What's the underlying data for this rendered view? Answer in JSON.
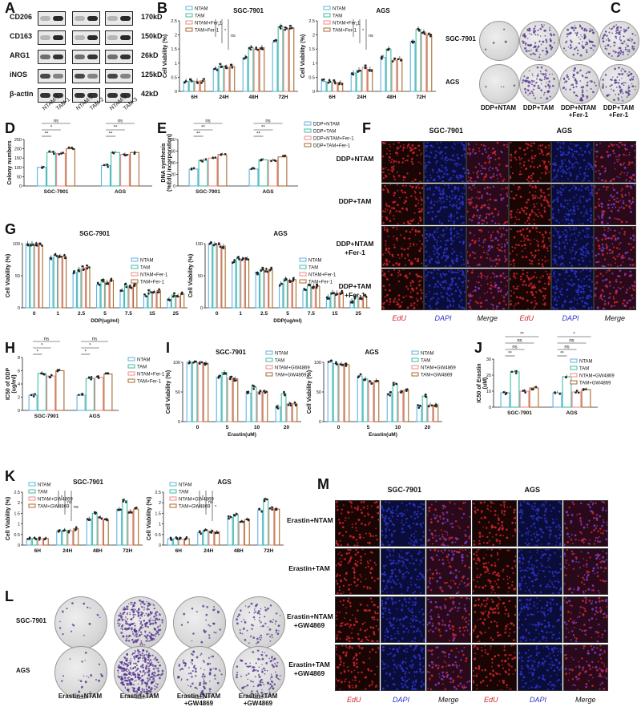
{
  "panels": {
    "A": {
      "letter": "A",
      "proteins": [
        "CD206",
        "CD163",
        "ARG1",
        "iNOS",
        "β-actin"
      ],
      "sizes": [
        "170kD",
        "150kD",
        "26kD",
        "125kD",
        "42kD"
      ],
      "lanes": [
        "NTAM-1",
        "TAM-1",
        "NTAM-2",
        "TAM-2",
        "NTAM-3",
        "TAM-3"
      ]
    },
    "B": {
      "letter": "B"
    },
    "C": {
      "letter": "C",
      "rows": [
        "SGC-7901",
        "AGS"
      ],
      "cols": [
        "DDP+NTAM",
        "DDP+TAM",
        "DDP+NTAM\n+Fer-1",
        "DDP+TAM\n+Fer-1"
      ]
    },
    "D": {
      "letter": "D"
    },
    "E": {
      "letter": "E"
    },
    "F": {
      "letter": "F",
      "col_heads": [
        "SGC-7901",
        "AGS"
      ],
      "rows": [
        "DDP+NTAM",
        "DDP+TAM",
        "DDP+NTAM\n+Fer-1",
        "DDP+TAM\n+Fer-1"
      ],
      "cols": [
        "EdU",
        "DAPI",
        "Merge",
        "EdU",
        "DAPI",
        "Merge"
      ]
    },
    "G": {
      "letter": "G"
    },
    "H": {
      "letter": "H"
    },
    "I": {
      "letter": "I"
    },
    "J": {
      "letter": "J"
    },
    "K": {
      "letter": "K"
    },
    "L": {
      "letter": "L",
      "rows": [
        "SGC-7901",
        "AGS"
      ],
      "cols": [
        "Erastin+NTAM",
        "Erastin+TAM",
        "Erastin+NTAM\n+GW4869",
        "Erastin+TAM\n+GW4869"
      ]
    },
    "M": {
      "letter": "M",
      "col_heads": [
        "SGC-7901",
        "AGS"
      ],
      "rows": [
        "Erastin+NTAM",
        "Erastin+TAM",
        "Erastin+NTAM\n+GW4869",
        "Erastin+TAM\n+GW4869"
      ],
      "cols": [
        "EdU",
        "DAPI",
        "Merge",
        "EdU",
        "DAPI",
        "Merge"
      ]
    }
  },
  "colors": {
    "c1": "#5fb3df",
    "c2": "#3dbfa0",
    "c3": "#f08a8a",
    "c4": "#a86b2f",
    "edu": "#d2262c",
    "dapi": "#2b34c9"
  },
  "chart_data": [
    {
      "id": "B1",
      "type": "bar",
      "title": "SGC-7901",
      "ylabel": "Cell Viability (%)",
      "categories": [
        "6H",
        "24H",
        "48H",
        "72H"
      ],
      "ylim": [
        0,
        2.5
      ],
      "yticks": [
        0,
        0.5,
        1.0,
        1.5,
        2.0,
        2.5
      ],
      "legend": [
        "NTAM",
        "TAM",
        "NTAM+Fer-1",
        "TAM+Fer-1"
      ],
      "series": [
        {
          "name": "NTAM",
          "values": [
            0.35,
            0.8,
            1.2,
            1.75
          ]
        },
        {
          "name": "TAM",
          "values": [
            0.37,
            0.9,
            1.55,
            2.3
          ]
        },
        {
          "name": "NTAM+Fer-1",
          "values": [
            0.36,
            0.85,
            1.5,
            2.2
          ]
        },
        {
          "name": "TAM+Fer-1",
          "values": [
            0.37,
            0.88,
            1.55,
            2.25
          ]
        }
      ],
      "sig": [
        "*",
        "*",
        "ns"
      ]
    },
    {
      "id": "B2",
      "type": "bar",
      "title": "AGS",
      "ylabel": "Cell Viability (%)",
      "categories": [
        "6H",
        "24H",
        "48H",
        "72H"
      ],
      "ylim": [
        0,
        2.5
      ],
      "yticks": [
        0,
        0.5,
        1.0,
        1.5,
        2.0,
        2.5
      ],
      "legend": [
        "NTAM",
        "TAM",
        "NTAM+Fer-1",
        "TAM+Fer-1"
      ],
      "series": [
        {
          "name": "NTAM",
          "values": [
            0.35,
            0.65,
            1.2,
            1.75
          ]
        },
        {
          "name": "TAM",
          "values": [
            0.33,
            0.75,
            1.5,
            2.2
          ]
        },
        {
          "name": "NTAM+Fer-1",
          "values": [
            0.32,
            0.85,
            1.1,
            2.1
          ]
        },
        {
          "name": "TAM+Fer-1",
          "values": [
            0.3,
            0.78,
            1.15,
            2.0
          ]
        }
      ],
      "sig": [
        "*",
        "*",
        "ns"
      ]
    },
    {
      "id": "D",
      "type": "bar",
      "title": "",
      "ylabel": "Colony numbers",
      "categories": [
        "SGC-7901",
        "AGS"
      ],
      "ylim": [
        0,
        250
      ],
      "yticks": [
        0,
        50,
        100,
        150,
        200,
        250
      ],
      "legend": [],
      "series": [
        {
          "name": "NTAM",
          "values": [
            100,
            110
          ]
        },
        {
          "name": "TAM",
          "values": [
            180,
            180
          ]
        },
        {
          "name": "NTAM+Fer-1",
          "values": [
            175,
            170
          ]
        },
        {
          "name": "TAM+Fer-1",
          "values": [
            200,
            180
          ]
        }
      ],
      "sig": [
        "**",
        "*",
        "ns",
        "**",
        "**",
        "ns"
      ]
    },
    {
      "id": "E",
      "type": "bar",
      "title": "",
      "ylabel": "DNA synthesis\n(%EdU incorporation)",
      "categories": [
        "SGC-7901",
        "AGS"
      ],
      "ylim": [
        0,
        80
      ],
      "yticks": [
        0,
        20,
        40,
        60,
        80
      ],
      "legend": [
        "DDP+NTAM",
        "DDP+TAM",
        "DDP+NTAM+Fer-1",
        "DDP+TAM+Fer-1"
      ],
      "series": [
        {
          "name": "DDP+NTAM",
          "values": [
            29,
            29
          ]
        },
        {
          "name": "DDP+TAM",
          "values": [
            44,
            45
          ]
        },
        {
          "name": "DDP+NTAM+Fer-1",
          "values": [
            48,
            44
          ]
        },
        {
          "name": "DDP+TAM+Fer-1",
          "values": [
            54,
            50
          ]
        }
      ],
      "sig": [
        "**",
        "**",
        "ns",
        "**",
        "**",
        "ns"
      ]
    },
    {
      "id": "G1",
      "type": "bar",
      "title": "SGC-7901",
      "ylabel": "Cell Viability (%)",
      "xlabel": "DDP(ug/ml)",
      "categories": [
        "0",
        "1",
        "2.5",
        "5",
        "7.5",
        "15",
        "25"
      ],
      "ylim": [
        0,
        100
      ],
      "yticks": [
        0,
        50,
        100
      ],
      "legend": [
        "NTAM",
        "TAM",
        "NTAM+Fer-1",
        "TAM+Fer-1"
      ],
      "series": [
        {
          "name": "NTAM",
          "values": [
            100,
            78,
            55,
            36,
            27,
            18,
            13
          ]
        },
        {
          "name": "TAM",
          "values": [
            100,
            82,
            60,
            42,
            35,
            25,
            20
          ]
        },
        {
          "name": "NTAM+Fer-1",
          "values": [
            99,
            80,
            62,
            40,
            33,
            24,
            18
          ]
        },
        {
          "name": "TAM+Fer-1",
          "values": [
            98,
            80,
            63,
            43,
            37,
            27,
            22
          ]
        }
      ]
    },
    {
      "id": "G2",
      "type": "bar",
      "title": "AGS",
      "ylabel": "Cell Viability (%)",
      "xlabel": "DDP(ug/ml)",
      "categories": [
        "0",
        "1",
        "2.5",
        "5",
        "7.5",
        "15",
        "25"
      ],
      "ylim": [
        0,
        100
      ],
      "yticks": [
        0,
        50,
        100
      ],
      "legend": [
        "NTAM",
        "TAM",
        "NTAM+Fer-1",
        "TAM+Fer-1"
      ],
      "series": [
        {
          "name": "NTAM",
          "values": [
            100,
            72,
            53,
            37,
            27,
            17,
            11
          ]
        },
        {
          "name": "TAM",
          "values": [
            99,
            77,
            60,
            45,
            34,
            24,
            17
          ]
        },
        {
          "name": "NTAM+Fer-1",
          "values": [
            98,
            76,
            58,
            42,
            33,
            23,
            16
          ]
        },
        {
          "name": "TAM+Fer-1",
          "values": [
            96,
            76,
            60,
            44,
            34,
            24,
            18
          ]
        }
      ]
    },
    {
      "id": "H",
      "type": "bar",
      "title": "",
      "ylabel": "IC50 of DDP\n(ug/ml)",
      "categories": [
        "SGC-7901",
        "AGS"
      ],
      "ylim": [
        0,
        8
      ],
      "yticks": [
        0,
        2,
        4,
        6,
        8
      ],
      "legend": [
        "NTAM",
        "TAM",
        "NTAM+Fer-1",
        "TAM+Fer-1"
      ],
      "series": [
        {
          "name": "NTAM",
          "values": [
            2.3,
            2.3
          ]
        },
        {
          "name": "TAM",
          "values": [
            5.6,
            4.8
          ]
        },
        {
          "name": "NTAM+Fer-1",
          "values": [
            5.2,
            5.0
          ]
        },
        {
          "name": "TAM+Fer-1",
          "values": [
            6.0,
            5.5
          ]
        }
      ],
      "sig": [
        "*",
        "*",
        "ns",
        "*",
        "*",
        "ns"
      ]
    },
    {
      "id": "I1",
      "type": "bar",
      "title": "SGC-7901",
      "ylabel": "Cell Viability (%)",
      "xlabel": "Erastin(uM)",
      "categories": [
        "0",
        "5",
        "10",
        "20"
      ],
      "ylim": [
        0,
        100
      ],
      "yticks": [
        0,
        50,
        100
      ],
      "legend": [
        "NTAM",
        "TAM",
        "NTAM+GW4869",
        "TAM+GW4869"
      ],
      "series": [
        {
          "name": "NTAM",
          "values": [
            100,
            75,
            48,
            25
          ]
        },
        {
          "name": "TAM",
          "values": [
            100,
            83,
            58,
            47
          ]
        },
        {
          "name": "NTAM+GW4869",
          "values": [
            99,
            73,
            50,
            30
          ]
        },
        {
          "name": "TAM+GW4869",
          "values": [
            98,
            72,
            50,
            30
          ]
        }
      ]
    },
    {
      "id": "I2",
      "type": "bar",
      "title": "AGS",
      "ylabel": "Cell Viability (%)",
      "xlabel": "Erastin(uM)",
      "categories": [
        "0",
        "5",
        "10",
        "20"
      ],
      "ylim": [
        0,
        100
      ],
      "yticks": [
        0,
        50,
        100
      ],
      "legend": [
        "NTAM",
        "TAM",
        "NTAM+GW4869",
        "TAM+GW4869"
      ],
      "series": [
        {
          "name": "NTAM",
          "values": [
            100,
            77,
            47,
            25
          ]
        },
        {
          "name": "TAM",
          "values": [
            98,
            72,
            63,
            43
          ]
        },
        {
          "name": "NTAM+GW4869",
          "values": [
            97,
            66,
            50,
            28
          ]
        },
        {
          "name": "TAM+GW4869",
          "values": [
            96,
            69,
            53,
            28
          ]
        }
      ]
    },
    {
      "id": "J",
      "type": "bar",
      "title": "",
      "ylabel": "IC50 of Erastin\n(uM)",
      "categories": [
        "SGC-7901",
        "AGS"
      ],
      "ylim": [
        0,
        30
      ],
      "yticks": [
        0,
        10,
        20,
        30
      ],
      "legend": [
        "NTAM",
        "TAM",
        "NTAM+GW4869",
        "TAM+GW4869"
      ],
      "series": [
        {
          "name": "NTAM",
          "values": [
            9,
            9
          ]
        },
        {
          "name": "TAM",
          "values": [
            22,
            19
          ]
        },
        {
          "name": "NTAM+GW4869",
          "values": [
            10,
            9.5
          ]
        },
        {
          "name": "TAM+GW4869",
          "values": [
            12,
            11
          ]
        }
      ],
      "sig": [
        "**",
        "ns",
        "ns",
        "**",
        "**",
        "ns",
        "ns",
        "*"
      ]
    },
    {
      "id": "K1",
      "type": "bar",
      "title": "SGC-7901",
      "ylabel": "Cell Viability (%)",
      "categories": [
        "6H",
        "24H",
        "48H",
        "72H"
      ],
      "ylim": [
        0,
        2.5
      ],
      "yticks": [
        0,
        0.5,
        1.0,
        1.5,
        2.0,
        2.5
      ],
      "legend": [
        "NTAM",
        "TAM",
        "NTAM+GW4869",
        "TAM+GW4869"
      ],
      "series": [
        {
          "name": "NTAM",
          "values": [
            0.3,
            0.65,
            1.25,
            1.7
          ]
        },
        {
          "name": "TAM",
          "values": [
            0.32,
            0.7,
            1.5,
            2.1
          ]
        },
        {
          "name": "NTAM+GW4869",
          "values": [
            0.3,
            0.67,
            1.3,
            1.6
          ]
        },
        {
          "name": "TAM+GW4869",
          "values": [
            0.31,
            0.78,
            1.2,
            1.7
          ]
        }
      ],
      "sig": [
        "*",
        "ns",
        "ns"
      ]
    },
    {
      "id": "K2",
      "type": "bar",
      "title": "AGS",
      "ylabel": "Cell Viability (%)",
      "categories": [
        "6H",
        "24H",
        "48H",
        "72H"
      ],
      "ylim": [
        0,
        2.5
      ],
      "yticks": [
        0,
        0.5,
        1.0,
        1.5,
        2.0,
        2.5
      ],
      "legend": [
        "NTAM",
        "TAM",
        "NTAM+GW4869",
        "TAM+GW4869"
      ],
      "series": [
        {
          "name": "NTAM",
          "values": [
            0.3,
            0.6,
            1.3,
            1.65
          ]
        },
        {
          "name": "TAM",
          "values": [
            0.3,
            0.7,
            1.45,
            2.15
          ]
        },
        {
          "name": "NTAM+GW4869",
          "values": [
            0.28,
            0.65,
            1.1,
            1.75
          ]
        },
        {
          "name": "TAM+GW4869",
          "values": [
            0.3,
            0.62,
            1.2,
            1.7
          ]
        }
      ],
      "sig": [
        "*",
        "ns",
        "*"
      ]
    }
  ]
}
